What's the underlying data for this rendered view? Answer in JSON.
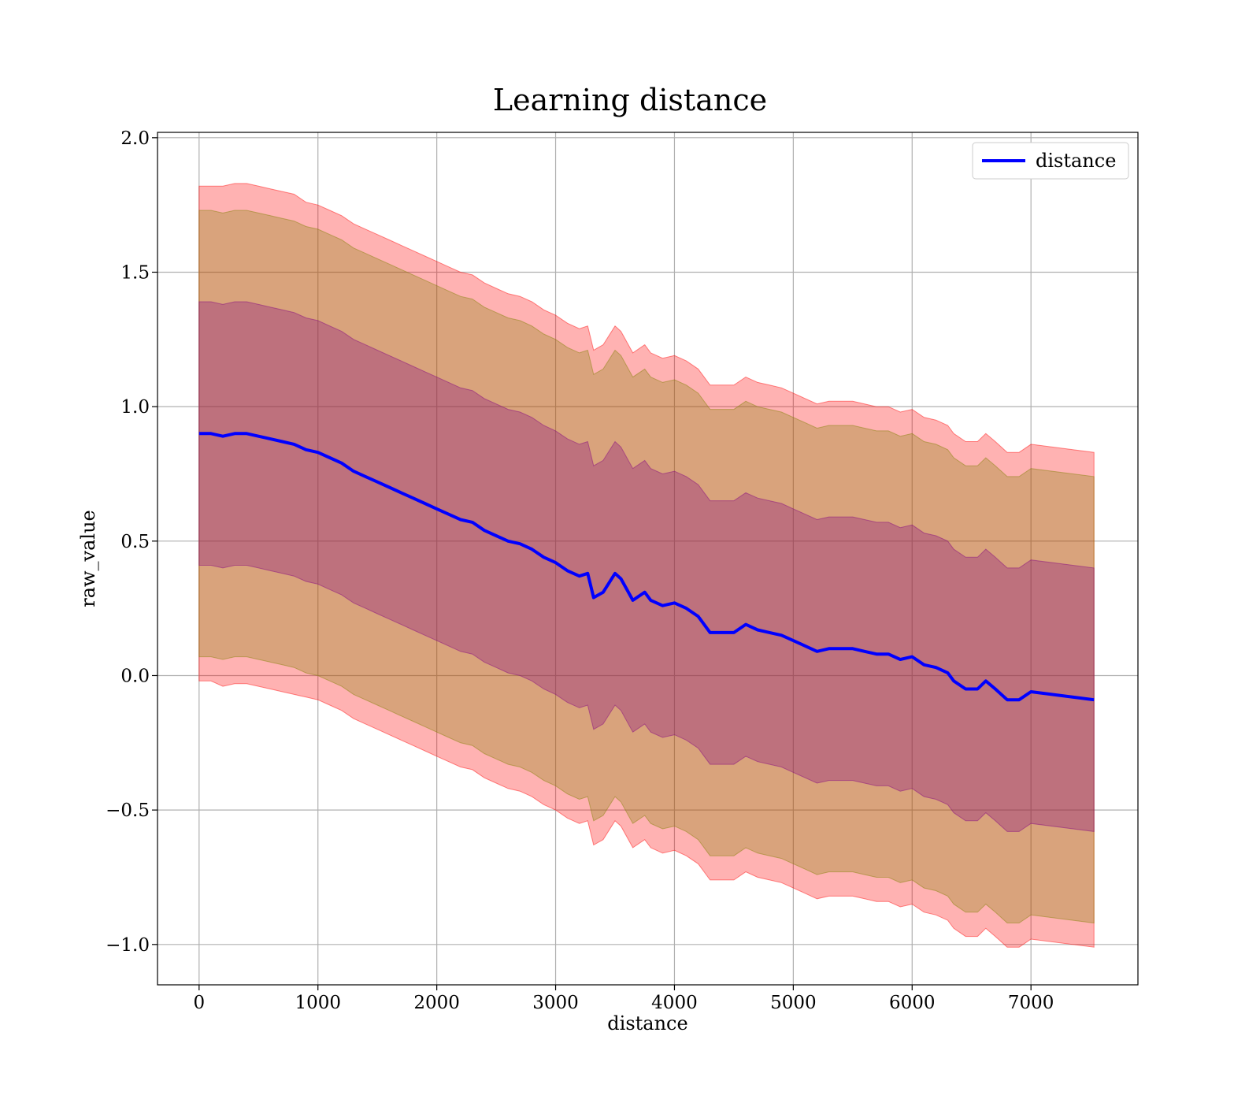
{
  "chart_data": {
    "type": "line",
    "title": "Learning distance",
    "xlabel": "distance",
    "ylabel": "raw_value",
    "xlim": [
      -350,
      7900
    ],
    "ylim": [
      -1.15,
      2.02
    ],
    "xticks": [
      0,
      1000,
      2000,
      3000,
      4000,
      5000,
      6000,
      7000
    ],
    "yticks": [
      -1.0,
      -0.5,
      0.0,
      0.5,
      1.0,
      1.5,
      2.0
    ],
    "ytick_labels": [
      "−1.0",
      "−0.5",
      "0.0",
      "0.5",
      "1.0",
      "1.5",
      "2.0"
    ],
    "grid": true,
    "legend_position": "top-right",
    "line_color": "#0000ff",
    "band_colors": [
      "#ff0000",
      "#808000",
      "#800080"
    ],
    "series": [
      {
        "name": "distance",
        "x": [
          0,
          100,
          200,
          300,
          400,
          500,
          600,
          700,
          800,
          900,
          1000,
          1100,
          1200,
          1300,
          1400,
          1500,
          1600,
          1700,
          1800,
          1900,
          2000,
          2100,
          2200,
          2300,
          2400,
          2500,
          2600,
          2700,
          2800,
          2900,
          3000,
          3100,
          3200,
          3270,
          3320,
          3400,
          3500,
          3550,
          3650,
          3750,
          3800,
          3900,
          4000,
          4100,
          4200,
          4300,
          4400,
          4500,
          4600,
          4700,
          4800,
          4900,
          5000,
          5100,
          5200,
          5300,
          5400,
          5500,
          5600,
          5700,
          5800,
          5900,
          6000,
          6100,
          6200,
          6300,
          6350,
          6450,
          6550,
          6620,
          6700,
          6800,
          6900,
          7000,
          7530
        ],
        "y": [
          0.9,
          0.9,
          0.89,
          0.9,
          0.9,
          0.89,
          0.88,
          0.87,
          0.86,
          0.84,
          0.83,
          0.81,
          0.79,
          0.76,
          0.74,
          0.72,
          0.7,
          0.68,
          0.66,
          0.64,
          0.62,
          0.6,
          0.58,
          0.57,
          0.54,
          0.52,
          0.5,
          0.49,
          0.47,
          0.44,
          0.42,
          0.39,
          0.37,
          0.38,
          0.29,
          0.31,
          0.38,
          0.36,
          0.28,
          0.31,
          0.28,
          0.26,
          0.27,
          0.25,
          0.22,
          0.16,
          0.16,
          0.16,
          0.19,
          0.17,
          0.16,
          0.15,
          0.13,
          0.11,
          0.09,
          0.1,
          0.1,
          0.1,
          0.09,
          0.08,
          0.08,
          0.06,
          0.07,
          0.04,
          0.03,
          0.01,
          -0.02,
          -0.05,
          -0.05,
          -0.02,
          -0.05,
          -0.09,
          -0.09,
          -0.06,
          -0.09
        ]
      }
    ],
    "bands": [
      {
        "color": "#ff0000",
        "opacity": 0.3,
        "halfwidth": [
          0.92,
          0.92,
          0.93,
          0.93,
          0.93,
          0.93,
          0.93,
          0.93,
          0.93,
          0.92,
          0.92,
          0.92,
          0.92,
          0.92,
          0.92,
          0.92,
          0.92,
          0.92,
          0.92,
          0.92,
          0.92,
          0.92,
          0.92,
          0.92,
          0.92,
          0.92,
          0.92,
          0.92,
          0.92,
          0.92,
          0.92,
          0.92,
          0.92,
          0.92,
          0.92,
          0.92,
          0.92,
          0.92,
          0.92,
          0.92,
          0.92,
          0.92,
          0.92,
          0.92,
          0.92,
          0.92,
          0.92,
          0.92,
          0.92,
          0.92,
          0.92,
          0.92,
          0.92,
          0.92,
          0.92,
          0.92,
          0.92,
          0.92,
          0.92,
          0.92,
          0.92,
          0.92,
          0.92,
          0.92,
          0.92,
          0.92,
          0.92,
          0.92,
          0.92,
          0.92,
          0.92,
          0.92,
          0.92,
          0.92,
          0.92
        ]
      },
      {
        "color": "#808000",
        "opacity": 0.3,
        "halfwidth": [
          0.83,
          0.83,
          0.83,
          0.83,
          0.83,
          0.83,
          0.83,
          0.83,
          0.83,
          0.83,
          0.83,
          0.83,
          0.83,
          0.83,
          0.83,
          0.83,
          0.83,
          0.83,
          0.83,
          0.83,
          0.83,
          0.83,
          0.83,
          0.83,
          0.83,
          0.83,
          0.83,
          0.83,
          0.83,
          0.83,
          0.83,
          0.83,
          0.83,
          0.83,
          0.83,
          0.83,
          0.83,
          0.83,
          0.83,
          0.83,
          0.83,
          0.83,
          0.83,
          0.83,
          0.83,
          0.83,
          0.83,
          0.83,
          0.83,
          0.83,
          0.83,
          0.83,
          0.83,
          0.83,
          0.83,
          0.83,
          0.83,
          0.83,
          0.83,
          0.83,
          0.83,
          0.83,
          0.83,
          0.83,
          0.83,
          0.83,
          0.83,
          0.83,
          0.83,
          0.83,
          0.83,
          0.83,
          0.83,
          0.83,
          0.83
        ]
      },
      {
        "color": "#800080",
        "opacity": 0.3,
        "halfwidth": [
          0.49,
          0.49,
          0.49,
          0.49,
          0.49,
          0.49,
          0.49,
          0.49,
          0.49,
          0.49,
          0.49,
          0.49,
          0.49,
          0.49,
          0.49,
          0.49,
          0.49,
          0.49,
          0.49,
          0.49,
          0.49,
          0.49,
          0.49,
          0.49,
          0.49,
          0.49,
          0.49,
          0.49,
          0.49,
          0.49,
          0.49,
          0.49,
          0.49,
          0.49,
          0.49,
          0.49,
          0.49,
          0.49,
          0.49,
          0.49,
          0.49,
          0.49,
          0.49,
          0.49,
          0.49,
          0.49,
          0.49,
          0.49,
          0.49,
          0.49,
          0.49,
          0.49,
          0.49,
          0.49,
          0.49,
          0.49,
          0.49,
          0.49,
          0.49,
          0.49,
          0.49,
          0.49,
          0.49,
          0.49,
          0.49,
          0.49,
          0.49,
          0.49,
          0.49,
          0.49,
          0.49,
          0.49,
          0.49,
          0.49,
          0.49
        ]
      }
    ]
  }
}
